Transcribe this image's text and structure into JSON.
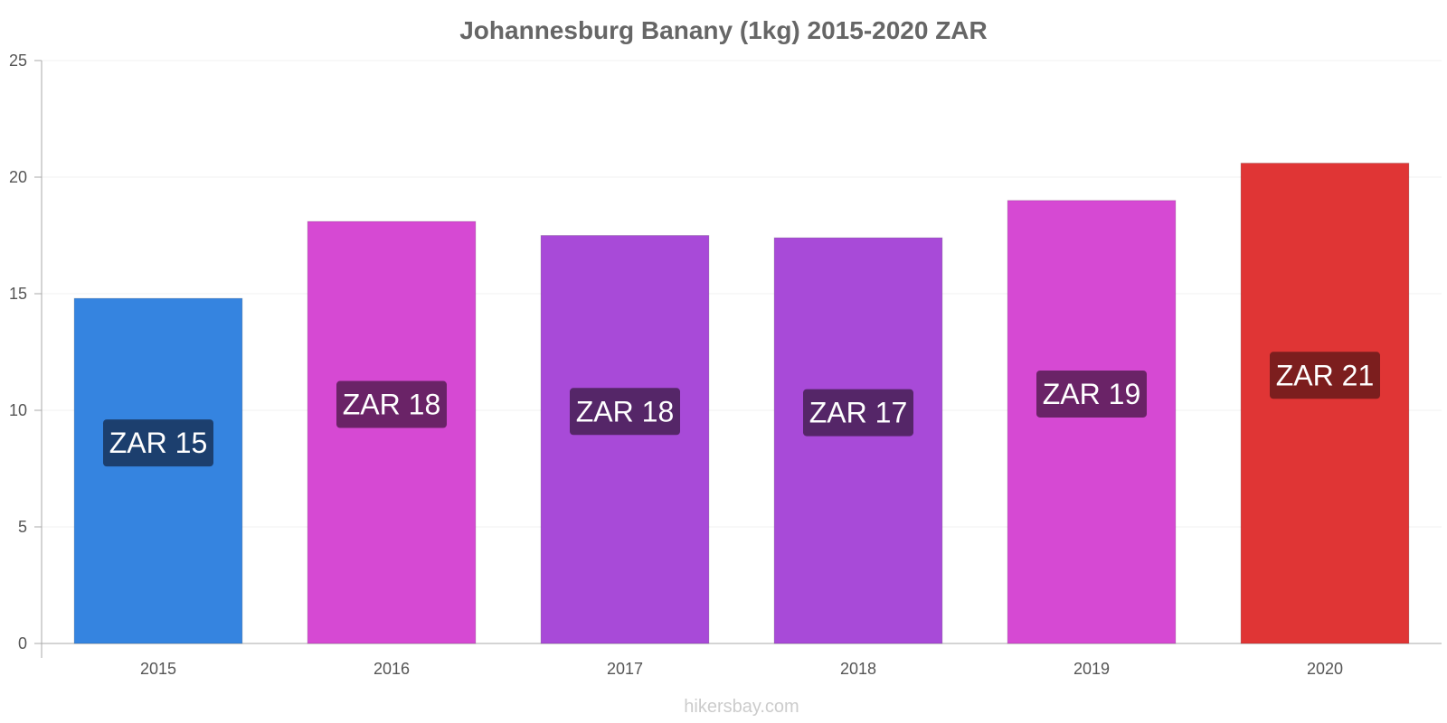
{
  "chart_data": {
    "type": "bar",
    "title": "Johannesburg Banany (1kg) 2015-2020 ZAR",
    "xlabel": "",
    "ylabel": "",
    "ylim": [
      0,
      25
    ],
    "yticks": [
      0,
      5,
      10,
      15,
      20,
      25
    ],
    "categories": [
      "2015",
      "2016",
      "2017",
      "2018",
      "2019",
      "2020"
    ],
    "values": [
      14.8,
      18.1,
      17.5,
      17.4,
      19.0,
      20.6
    ],
    "data_labels": [
      "ZAR 15",
      "ZAR 18",
      "ZAR 18",
      "ZAR 17",
      "ZAR 19",
      "ZAR 21"
    ],
    "bar_colors": [
      "#3584e0",
      "#d649d3",
      "#a84ad8",
      "#a84ad8",
      "#d649d3",
      "#e03535"
    ],
    "label_bg_colors": [
      "#1c3f6e",
      "#6a2367",
      "#552668",
      "#552668",
      "#6a2367",
      "#7c1e1e"
    ],
    "grid": true,
    "legend": "none"
  },
  "credit": "hikersbay.com"
}
